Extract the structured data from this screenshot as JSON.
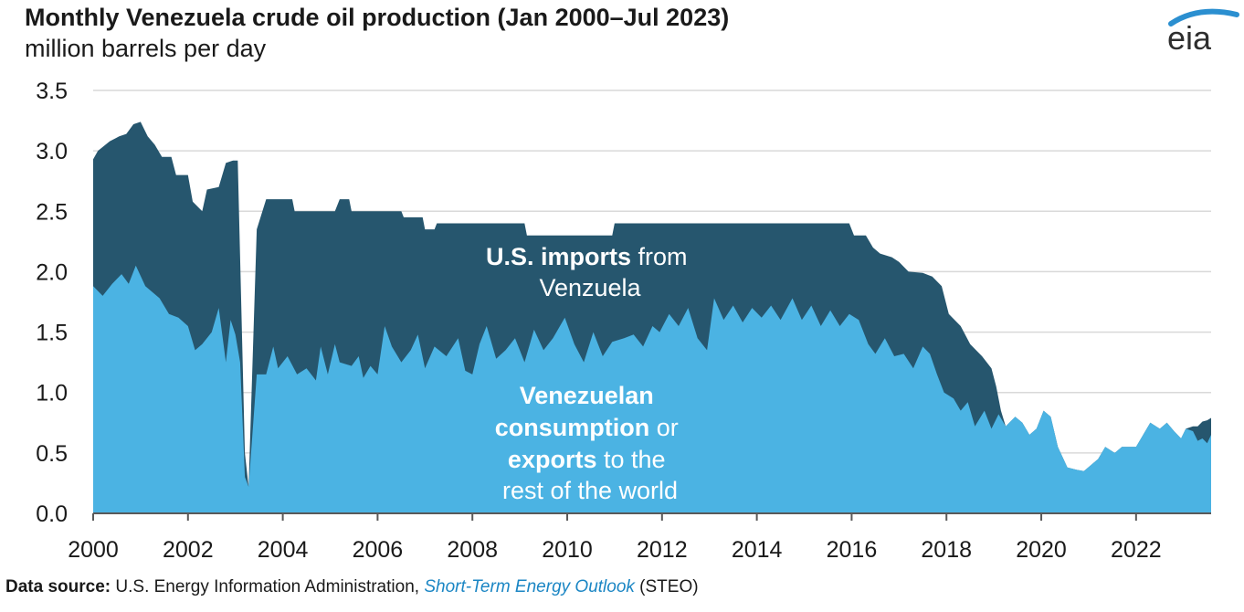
{
  "header": {
    "title": "Monthly Venezuela crude oil production (Jan 2000–Jul 2023)",
    "subtitle": "million barrels per day",
    "logo_text": "eia"
  },
  "footer": {
    "label": "Data source:",
    "text": "U.S. Energy Information Administration,",
    "link": "Short-Term Energy Outlook",
    "suffix": "(STEO)"
  },
  "colors": {
    "us_imports": "#26566e",
    "other": "#4bb3e3",
    "grid": "#d9d9d9",
    "logo_arc": "#2b8fd0"
  },
  "annotations": {
    "imports_line1_bold": "U.S. imports",
    "imports_line1_rest": "from",
    "imports_line2": "Venzuela",
    "other_line1": "Venezuelan",
    "other_line2_bold": "consumption",
    "other_line2_rest": "or",
    "other_line3_bold": "exports",
    "other_line3_rest": "to the",
    "other_line4": "rest of the world"
  },
  "chart_data": {
    "type": "area",
    "title": "Monthly Venezuela crude oil production (Jan 2000–Jul 2023)",
    "ylabel": "million barrels per day",
    "xlim": [
      2000.0,
      2023.583
    ],
    "ylim": [
      0,
      3.5
    ],
    "yticks": [
      "0.0",
      "0.5",
      "1.0",
      "1.5",
      "2.0",
      "2.5",
      "3.0",
      "3.5"
    ],
    "xticks": [
      "2000",
      "2002",
      "2004",
      "2006",
      "2008",
      "2010",
      "2012",
      "2014",
      "2016",
      "2018",
      "2020",
      "2022"
    ],
    "grid": true,
    "stacked": true,
    "series": [
      {
        "name": "Venezuelan consumption or exports to the rest of the world",
        "color": "#4bb3e3",
        "points": [
          [
            2000.0,
            1.88
          ],
          [
            2000.2,
            1.8
          ],
          [
            2000.4,
            1.9
          ],
          [
            2000.6,
            1.98
          ],
          [
            2000.75,
            1.9
          ],
          [
            2000.9,
            2.05
          ],
          [
            2001.1,
            1.88
          ],
          [
            2001.4,
            1.78
          ],
          [
            2001.6,
            1.65
          ],
          [
            2001.8,
            1.62
          ],
          [
            2002.0,
            1.55
          ],
          [
            2002.15,
            1.35
          ],
          [
            2002.3,
            1.4
          ],
          [
            2002.5,
            1.5
          ],
          [
            2002.65,
            1.7
          ],
          [
            2002.8,
            1.25
          ],
          [
            2002.9,
            1.6
          ],
          [
            2003.0,
            1.48
          ],
          [
            2003.1,
            1.25
          ],
          [
            2003.2,
            0.3
          ],
          [
            2003.28,
            0.22
          ],
          [
            2003.45,
            1.15
          ],
          [
            2003.65,
            1.15
          ],
          [
            2003.8,
            1.38
          ],
          [
            2003.9,
            1.2
          ],
          [
            2004.1,
            1.3
          ],
          [
            2004.3,
            1.15
          ],
          [
            2004.5,
            1.2
          ],
          [
            2004.7,
            1.1
          ],
          [
            2004.8,
            1.38
          ],
          [
            2004.95,
            1.15
          ],
          [
            2005.1,
            1.4
          ],
          [
            2005.2,
            1.25
          ],
          [
            2005.45,
            1.22
          ],
          [
            2005.6,
            1.3
          ],
          [
            2005.7,
            1.12
          ],
          [
            2005.85,
            1.22
          ],
          [
            2006.0,
            1.15
          ],
          [
            2006.15,
            1.55
          ],
          [
            2006.3,
            1.38
          ],
          [
            2006.5,
            1.25
          ],
          [
            2006.7,
            1.35
          ],
          [
            2006.85,
            1.48
          ],
          [
            2007.0,
            1.2
          ],
          [
            2007.2,
            1.38
          ],
          [
            2007.45,
            1.3
          ],
          [
            2007.7,
            1.45
          ],
          [
            2007.85,
            1.18
          ],
          [
            2008.0,
            1.15
          ],
          [
            2008.15,
            1.4
          ],
          [
            2008.3,
            1.55
          ],
          [
            2008.5,
            1.28
          ],
          [
            2008.7,
            1.35
          ],
          [
            2008.9,
            1.45
          ],
          [
            2009.1,
            1.25
          ],
          [
            2009.3,
            1.52
          ],
          [
            2009.5,
            1.35
          ],
          [
            2009.7,
            1.45
          ],
          [
            2009.95,
            1.62
          ],
          [
            2010.15,
            1.4
          ],
          [
            2010.35,
            1.25
          ],
          [
            2010.55,
            1.5
          ],
          [
            2010.75,
            1.3
          ],
          [
            2010.95,
            1.42
          ],
          [
            2011.2,
            1.45
          ],
          [
            2011.4,
            1.48
          ],
          [
            2011.6,
            1.38
          ],
          [
            2011.8,
            1.55
          ],
          [
            2011.95,
            1.5
          ],
          [
            2012.15,
            1.65
          ],
          [
            2012.35,
            1.55
          ],
          [
            2012.55,
            1.7
          ],
          [
            2012.75,
            1.45
          ],
          [
            2012.95,
            1.35
          ],
          [
            2013.1,
            1.78
          ],
          [
            2013.3,
            1.6
          ],
          [
            2013.5,
            1.72
          ],
          [
            2013.7,
            1.58
          ],
          [
            2013.9,
            1.7
          ],
          [
            2014.1,
            1.62
          ],
          [
            2014.3,
            1.72
          ],
          [
            2014.5,
            1.6
          ],
          [
            2014.75,
            1.78
          ],
          [
            2014.95,
            1.6
          ],
          [
            2015.15,
            1.72
          ],
          [
            2015.35,
            1.55
          ],
          [
            2015.55,
            1.68
          ],
          [
            2015.75,
            1.55
          ],
          [
            2015.95,
            1.65
          ],
          [
            2016.15,
            1.6
          ],
          [
            2016.35,
            1.4
          ],
          [
            2016.5,
            1.32
          ],
          [
            2016.7,
            1.45
          ],
          [
            2016.9,
            1.3
          ],
          [
            2017.1,
            1.32
          ],
          [
            2017.3,
            1.2
          ],
          [
            2017.5,
            1.38
          ],
          [
            2017.65,
            1.32
          ],
          [
            2017.8,
            1.15
          ],
          [
            2017.95,
            1.0
          ],
          [
            2018.15,
            0.95
          ],
          [
            2018.3,
            0.85
          ],
          [
            2018.45,
            0.92
          ],
          [
            2018.6,
            0.72
          ],
          [
            2018.8,
            0.85
          ],
          [
            2018.95,
            0.7
          ],
          [
            2019.1,
            0.82
          ],
          [
            2019.25,
            0.72
          ],
          [
            2019.45,
            0.8
          ],
          [
            2019.6,
            0.75
          ],
          [
            2019.75,
            0.65
          ],
          [
            2019.9,
            0.7
          ],
          [
            2020.05,
            0.85
          ],
          [
            2020.2,
            0.8
          ],
          [
            2020.35,
            0.55
          ],
          [
            2020.55,
            0.38
          ],
          [
            2020.75,
            0.36
          ],
          [
            2020.9,
            0.35
          ],
          [
            2021.05,
            0.4
          ],
          [
            2021.2,
            0.45
          ],
          [
            2021.35,
            0.55
          ],
          [
            2021.55,
            0.5
          ],
          [
            2021.7,
            0.55
          ],
          [
            2022.0,
            0.55
          ],
          [
            2022.15,
            0.65
          ],
          [
            2022.3,
            0.75
          ],
          [
            2022.5,
            0.7
          ],
          [
            2022.65,
            0.75
          ],
          [
            2022.8,
            0.68
          ],
          [
            2022.95,
            0.62
          ],
          [
            2023.05,
            0.7
          ],
          [
            2023.2,
            0.68
          ],
          [
            2023.3,
            0.6
          ],
          [
            2023.4,
            0.62
          ],
          [
            2023.5,
            0.58
          ],
          [
            2023.583,
            0.65
          ]
        ]
      },
      {
        "name": "U.S. imports from Venezuela",
        "color": "#26566e",
        "points": [
          [
            2000.0,
            2.93
          ],
          [
            2000.1,
            3.0
          ],
          [
            2000.35,
            3.08
          ],
          [
            2000.55,
            3.12
          ],
          [
            2000.7,
            3.14
          ],
          [
            2000.85,
            3.22
          ],
          [
            2001.0,
            3.24
          ],
          [
            2001.15,
            3.12
          ],
          [
            2001.3,
            3.05
          ],
          [
            2001.45,
            2.95
          ],
          [
            2001.65,
            2.95
          ],
          [
            2001.75,
            2.8
          ],
          [
            2002.0,
            2.8
          ],
          [
            2002.1,
            2.58
          ],
          [
            2002.3,
            2.5
          ],
          [
            2002.4,
            2.68
          ],
          [
            2002.65,
            2.7
          ],
          [
            2002.8,
            2.9
          ],
          [
            2002.95,
            2.92
          ],
          [
            2003.05,
            2.92
          ],
          [
            2003.2,
            0.5
          ],
          [
            2003.28,
            0.22
          ],
          [
            2003.45,
            2.35
          ],
          [
            2003.65,
            2.6
          ],
          [
            2004.2,
            2.6
          ],
          [
            2004.25,
            2.5
          ],
          [
            2005.1,
            2.5
          ],
          [
            2005.2,
            2.6
          ],
          [
            2005.4,
            2.6
          ],
          [
            2005.45,
            2.5
          ],
          [
            2006.5,
            2.5
          ],
          [
            2006.55,
            2.45
          ],
          [
            2006.95,
            2.45
          ],
          [
            2007.0,
            2.35
          ],
          [
            2007.2,
            2.35
          ],
          [
            2007.25,
            2.4
          ],
          [
            2009.1,
            2.4
          ],
          [
            2009.15,
            2.3
          ],
          [
            2010.95,
            2.3
          ],
          [
            2011.0,
            2.4
          ],
          [
            2015.95,
            2.4
          ],
          [
            2016.05,
            2.3
          ],
          [
            2016.3,
            2.3
          ],
          [
            2016.45,
            2.2
          ],
          [
            2016.6,
            2.15
          ],
          [
            2016.85,
            2.12
          ],
          [
            2017.0,
            2.08
          ],
          [
            2017.2,
            2.0
          ],
          [
            2017.5,
            1.99
          ],
          [
            2017.7,
            1.96
          ],
          [
            2017.9,
            1.88
          ],
          [
            2018.05,
            1.65
          ],
          [
            2018.3,
            1.55
          ],
          [
            2018.5,
            1.4
          ],
          [
            2018.75,
            1.3
          ],
          [
            2018.95,
            1.2
          ],
          [
            2019.05,
            1.05
          ],
          [
            2019.15,
            0.85
          ],
          [
            2019.25,
            0.72
          ],
          [
            2019.45,
            0.8
          ],
          [
            2019.6,
            0.75
          ],
          [
            2019.75,
            0.65
          ],
          [
            2019.9,
            0.7
          ],
          [
            2020.05,
            0.85
          ],
          [
            2020.2,
            0.8
          ],
          [
            2020.35,
            0.55
          ],
          [
            2020.55,
            0.38
          ],
          [
            2020.75,
            0.36
          ],
          [
            2020.9,
            0.35
          ],
          [
            2021.05,
            0.4
          ],
          [
            2021.2,
            0.45
          ],
          [
            2021.35,
            0.55
          ],
          [
            2021.55,
            0.5
          ],
          [
            2021.7,
            0.55
          ],
          [
            2022.0,
            0.55
          ],
          [
            2022.15,
            0.65
          ],
          [
            2022.3,
            0.75
          ],
          [
            2022.5,
            0.7
          ],
          [
            2022.65,
            0.75
          ],
          [
            2022.8,
            0.68
          ],
          [
            2022.95,
            0.62
          ],
          [
            2023.05,
            0.7
          ],
          [
            2023.2,
            0.72
          ],
          [
            2023.3,
            0.72
          ],
          [
            2023.4,
            0.76
          ],
          [
            2023.5,
            0.77
          ],
          [
            2023.583,
            0.79
          ]
        ]
      }
    ],
    "annotations": [
      "U.S. imports from Venzuela",
      "Venezuelan consumption or exports to the rest of the world"
    ]
  }
}
